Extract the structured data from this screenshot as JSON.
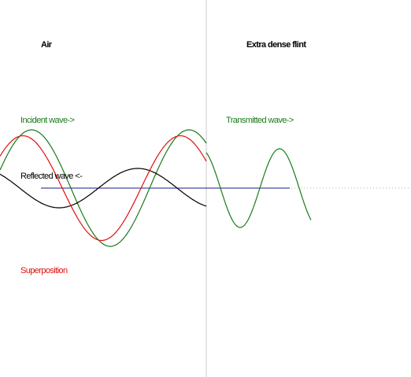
{
  "media_labels": {
    "left": "Air",
    "right": "Extra dense flint"
  },
  "wave_labels": {
    "incident": "Incident wave->",
    "transmitted": "Transmitted wave->",
    "reflected": "Reflected wave <-",
    "superposition": "Superposition"
  }
}
